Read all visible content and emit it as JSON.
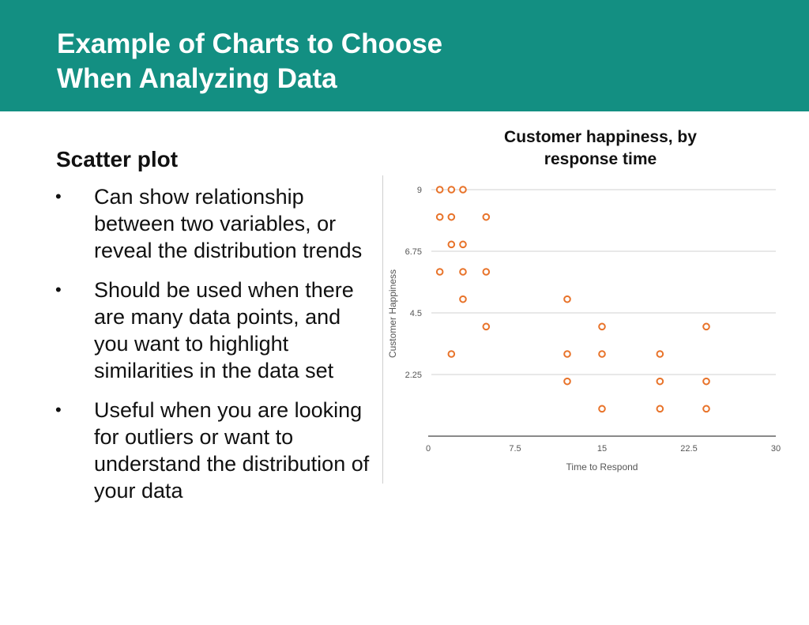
{
  "header": {
    "title_line1": "Example of Charts to Choose",
    "title_line2": "When Analyzing Data"
  },
  "section": {
    "heading": "Scatter plot",
    "bullet_char": "•",
    "bullets": [
      "Can show relationship between two variables, or reveal the distribution trends",
      "Should be used when there are many data points, and you want to highlight similarities in the data set",
      "Useful when you are looking for outliers or want to understand the distribution of your data"
    ]
  },
  "colors": {
    "header_bg": "#138f82",
    "marker": "#e8732a"
  },
  "chart_data": {
    "type": "scatter",
    "title_line1": "Customer happiness, by",
    "title_line2": "response time",
    "xlabel": "Time to Respond",
    "ylabel": "Customer Happiness",
    "xlim": [
      0,
      30
    ],
    "ylim": [
      0,
      9
    ],
    "xticks": [
      "0",
      "7.5",
      "15",
      "22.5",
      "30"
    ],
    "yticks": [
      "2.25",
      "4.5",
      "6.75",
      "9"
    ],
    "ytick_values": [
      2.25,
      4.5,
      6.75,
      9
    ],
    "grid": true,
    "series": [
      {
        "name": "Customer happiness",
        "points": [
          [
            1,
            9
          ],
          [
            2,
            9
          ],
          [
            3,
            9
          ],
          [
            1,
            8
          ],
          [
            2,
            8
          ],
          [
            5,
            8
          ],
          [
            2,
            7
          ],
          [
            3,
            7
          ],
          [
            1,
            6
          ],
          [
            3,
            6
          ],
          [
            5,
            6
          ],
          [
            3,
            5
          ],
          [
            12,
            5
          ],
          [
            5,
            4
          ],
          [
            15,
            4
          ],
          [
            24,
            4
          ],
          [
            2,
            3
          ],
          [
            12,
            3
          ],
          [
            15,
            3
          ],
          [
            20,
            3
          ],
          [
            12,
            2
          ],
          [
            20,
            2
          ],
          [
            24,
            2
          ],
          [
            15,
            1
          ],
          [
            20,
            1
          ],
          [
            24,
            1
          ]
        ]
      }
    ]
  }
}
